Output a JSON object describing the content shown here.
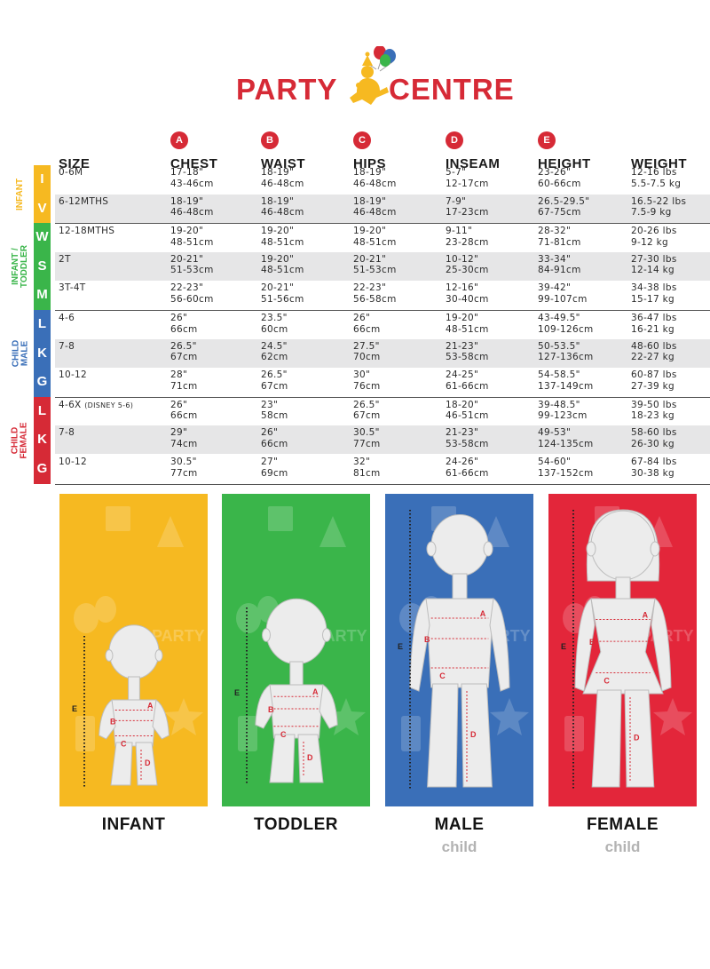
{
  "brand": {
    "word1": "PARTY",
    "word2": "CENTRE",
    "red": "#d62a36",
    "yellow": "#f6b921"
  },
  "headers": [
    {
      "key": "size",
      "label": "SIZE",
      "badge": ""
    },
    {
      "key": "chest",
      "label": "CHEST",
      "badge": "A"
    },
    {
      "key": "waist",
      "label": "WAIST",
      "badge": "B"
    },
    {
      "key": "hips",
      "label": "HIPS",
      "badge": "C"
    },
    {
      "key": "inseam",
      "label": "INSEAM",
      "badge": "D"
    },
    {
      "key": "height",
      "label": "HEIGHT",
      "badge": "E"
    },
    {
      "key": "weight",
      "label": "WEIGHT",
      "badge": ""
    }
  ],
  "groups": [
    {
      "label": "INFANT",
      "color": "#f6b921",
      "rows": [
        {
          "letter": "I",
          "size": "0-6M",
          "chest": "17-18\"\n43-46cm",
          "waist": "18-19\"\n46-48cm",
          "hips": "18-19\"\n46-48cm",
          "inseam": "5-7\"\n12-17cm",
          "height": "23-26\"\n60-66cm",
          "weight": "12-16 lbs\n5.5-7.5 kg"
        },
        {
          "letter": "V",
          "size": "6-12MTHS",
          "chest": "18-19\"\n46-48cm",
          "waist": "18-19\"\n46-48cm",
          "hips": "18-19\"\n46-48cm",
          "inseam": "7-9\"\n17-23cm",
          "height": "26.5-29.5\"\n67-75cm",
          "weight": "16.5-22 lbs\n7.5-9 kg"
        }
      ]
    },
    {
      "label": "INFANT /\nTODDLER",
      "color": "#3ab54a",
      "rows": [
        {
          "letter": "W",
          "size": "12-18MTHS",
          "chest": "19-20\"\n48-51cm",
          "waist": "19-20\"\n48-51cm",
          "hips": "19-20\"\n48-51cm",
          "inseam": "9-11\"\n23-28cm",
          "height": "28-32\"\n71-81cm",
          "weight": "20-26 lbs\n9-12 kg"
        },
        {
          "letter": "S",
          "size": "2T",
          "chest": "20-21\"\n51-53cm",
          "waist": "19-20\"\n48-51cm",
          "hips": "20-21\"\n51-53cm",
          "inseam": "10-12\"\n25-30cm",
          "height": "33-34\"\n84-91cm",
          "weight": "27-30 lbs\n12-14 kg"
        },
        {
          "letter": "M",
          "size": "3T-4T",
          "chest": "22-23\"\n56-60cm",
          "waist": "20-21\"\n51-56cm",
          "hips": "22-23\"\n56-58cm",
          "inseam": "12-16\"\n30-40cm",
          "height": "39-42\"\n99-107cm",
          "weight": "34-38 lbs\n15-17 kg"
        }
      ]
    },
    {
      "label": "CHILD\nMALE",
      "color": "#3a6fb8",
      "rows": [
        {
          "letter": "L",
          "size": "4-6",
          "chest": "26\"\n66cm",
          "waist": "23.5\"\n60cm",
          "hips": "26\"\n66cm",
          "inseam": "19-20\"\n48-51cm",
          "height": "43-49.5\"\n109-126cm",
          "weight": "36-47 lbs\n16-21 kg"
        },
        {
          "letter": "K",
          "size": "7-8",
          "chest": "26.5\"\n67cm",
          "waist": "24.5\"\n62cm",
          "hips": "27.5\"\n70cm",
          "inseam": "21-23\"\n53-58cm",
          "height": "50-53.5\"\n127-136cm",
          "weight": "48-60 lbs\n22-27 kg"
        },
        {
          "letter": "G",
          "size": "10-12",
          "chest": "28\"\n71cm",
          "waist": "26.5\"\n67cm",
          "hips": "30\"\n76cm",
          "inseam": "24-25\"\n61-66cm",
          "height": "54-58.5\"\n137-149cm",
          "weight": "60-87 lbs\n27-39 kg"
        }
      ]
    },
    {
      "label": "CHILD\nFEMALE",
      "color": "#d62a36",
      "rows": [
        {
          "letter": "L",
          "size": "4-6X",
          "size_note": "(DISNEY 5-6)",
          "chest": "26\"\n66cm",
          "waist": "23\"\n58cm",
          "hips": "26.5\"\n67cm",
          "inseam": "18-20\"\n46-51cm",
          "height": "39-48.5\"\n99-123cm",
          "weight": "39-50 lbs\n18-23 kg"
        },
        {
          "letter": "K",
          "size": "7-8",
          "chest": "29\"\n74cm",
          "waist": "26\"\n66cm",
          "hips": "30.5\"\n77cm",
          "inseam": "21-23\"\n53-58cm",
          "height": "49-53\"\n124-135cm",
          "weight": "58-60 lbs\n26-30 kg"
        },
        {
          "letter": "G",
          "size": "10-12",
          "chest": "30.5\"\n77cm",
          "waist": "27\"\n69cm",
          "hips": "32\"\n81cm",
          "inseam": "24-26\"\n61-66cm",
          "height": "54-60\"\n137-152cm",
          "weight": "67-84 lbs\n30-38 kg"
        }
      ]
    }
  ],
  "figures": [
    {
      "key": "infant",
      "caption": "INFANT",
      "subcaption": "",
      "color": "#f6b921",
      "decor": "PARTY"
    },
    {
      "key": "toddler",
      "caption": "TODDLER",
      "subcaption": "",
      "color": "#3ab54a",
      "decor": "PARTY"
    },
    {
      "key": "male",
      "caption": "MALE",
      "subcaption": "child",
      "color": "#3a6fb8",
      "decor": "PARTY"
    },
    {
      "key": "female",
      "caption": "FEMALE",
      "subcaption": "child",
      "color": "#e3263a",
      "decor": "PARTY"
    }
  ],
  "measure_labels": [
    "A",
    "B",
    "C",
    "D",
    "E"
  ]
}
